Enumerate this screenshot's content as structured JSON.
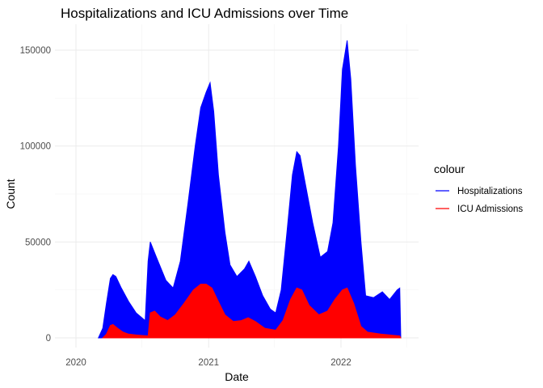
{
  "chart_data": {
    "type": "area",
    "title": "Hospitalizations and ICU Admissions over Time",
    "xlabel": "Date",
    "ylabel": "Count",
    "x_ticks": [
      "2020",
      "2021",
      "2022"
    ],
    "y_ticks": [
      "0",
      "50000",
      "100000",
      "150000"
    ],
    "ylim": [
      0,
      155000
    ],
    "grid": true,
    "legend_title": "colour",
    "legend_position": "right",
    "series": [
      {
        "name": "Hospitalizations",
        "color": "#0000ff",
        "points": [
          [
            "2020-03-03",
            0
          ],
          [
            "2020-03-15",
            5000
          ],
          [
            "2020-03-25",
            18000
          ],
          [
            "2020-04-05",
            31000
          ],
          [
            "2020-04-12",
            33000
          ],
          [
            "2020-04-20",
            32000
          ],
          [
            "2020-05-05",
            26000
          ],
          [
            "2020-05-25",
            19000
          ],
          [
            "2020-06-15",
            13000
          ],
          [
            "2020-07-10",
            9000
          ],
          [
            "2020-07-18",
            40000
          ],
          [
            "2020-07-24",
            50000
          ],
          [
            "2020-08-10",
            42000
          ],
          [
            "2020-09-05",
            30000
          ],
          [
            "2020-09-25",
            26000
          ],
          [
            "2020-10-15",
            40000
          ],
          [
            "2020-11-05",
            70000
          ],
          [
            "2020-11-25",
            100000
          ],
          [
            "2020-12-10",
            120000
          ],
          [
            "2020-12-25",
            128000
          ],
          [
            "2021-01-05",
            133000
          ],
          [
            "2021-01-15",
            118000
          ],
          [
            "2021-01-28",
            85000
          ],
          [
            "2021-02-15",
            55000
          ],
          [
            "2021-03-01",
            38000
          ],
          [
            "2021-03-20",
            32000
          ],
          [
            "2021-04-10",
            36000
          ],
          [
            "2021-04-22",
            40000
          ],
          [
            "2021-05-10",
            32000
          ],
          [
            "2021-05-30",
            22000
          ],
          [
            "2021-06-20",
            15000
          ],
          [
            "2021-07-05",
            13000
          ],
          [
            "2021-07-20",
            25000
          ],
          [
            "2021-08-05",
            55000
          ],
          [
            "2021-08-20",
            85000
          ],
          [
            "2021-09-01",
            97000
          ],
          [
            "2021-09-10",
            95000
          ],
          [
            "2021-09-25",
            80000
          ],
          [
            "2021-10-15",
            60000
          ],
          [
            "2021-11-05",
            42000
          ],
          [
            "2021-11-25",
            45000
          ],
          [
            "2021-12-10",
            60000
          ],
          [
            "2021-12-25",
            100000
          ],
          [
            "2022-01-05",
            140000
          ],
          [
            "2022-01-18",
            155000
          ],
          [
            "2022-01-28",
            135000
          ],
          [
            "2022-02-10",
            90000
          ],
          [
            "2022-02-25",
            50000
          ],
          [
            "2022-03-10",
            22000
          ],
          [
            "2022-04-01",
            21000
          ],
          [
            "2022-04-25",
            24000
          ],
          [
            "2022-05-15",
            20000
          ],
          [
            "2022-06-05",
            25000
          ],
          [
            "2022-06-12",
            26000
          ],
          [
            "2022-06-15",
            0
          ]
        ]
      },
      {
        "name": "ICU Admissions",
        "color": "#ff0000",
        "points": [
          [
            "2020-03-15",
            0
          ],
          [
            "2020-03-25",
            2000
          ],
          [
            "2020-04-05",
            6500
          ],
          [
            "2020-04-12",
            7000
          ],
          [
            "2020-04-25",
            5000
          ],
          [
            "2020-05-10",
            3000
          ],
          [
            "2020-05-25",
            2000
          ],
          [
            "2020-06-15",
            1500
          ],
          [
            "2020-07-18",
            1000
          ],
          [
            "2020-07-24",
            13000
          ],
          [
            "2020-08-05",
            14000
          ],
          [
            "2020-08-20",
            11000
          ],
          [
            "2020-09-10",
            9000
          ],
          [
            "2020-10-01",
            12000
          ],
          [
            "2020-10-25",
            18000
          ],
          [
            "2020-11-20",
            25000
          ],
          [
            "2020-12-10",
            28000
          ],
          [
            "2020-12-25",
            28000
          ],
          [
            "2021-01-10",
            26000
          ],
          [
            "2021-01-25",
            20000
          ],
          [
            "2021-02-15",
            12000
          ],
          [
            "2021-03-10",
            8500
          ],
          [
            "2021-04-01",
            9000
          ],
          [
            "2021-04-20",
            10500
          ],
          [
            "2021-05-10",
            8500
          ],
          [
            "2021-06-05",
            5000
          ],
          [
            "2021-07-05",
            4000
          ],
          [
            "2021-07-25",
            9000
          ],
          [
            "2021-08-15",
            20000
          ],
          [
            "2021-09-01",
            26000
          ],
          [
            "2021-09-15",
            25000
          ],
          [
            "2021-10-05",
            17000
          ],
          [
            "2021-11-01",
            12000
          ],
          [
            "2021-11-25",
            14000
          ],
          [
            "2021-12-15",
            20000
          ],
          [
            "2022-01-05",
            25000
          ],
          [
            "2022-01-18",
            26000
          ],
          [
            "2022-02-05",
            18000
          ],
          [
            "2022-02-25",
            6000
          ],
          [
            "2022-03-15",
            3000
          ],
          [
            "2022-04-20",
            2000
          ],
          [
            "2022-06-12",
            1000
          ],
          [
            "2022-06-15",
            0
          ]
        ]
      }
    ]
  }
}
